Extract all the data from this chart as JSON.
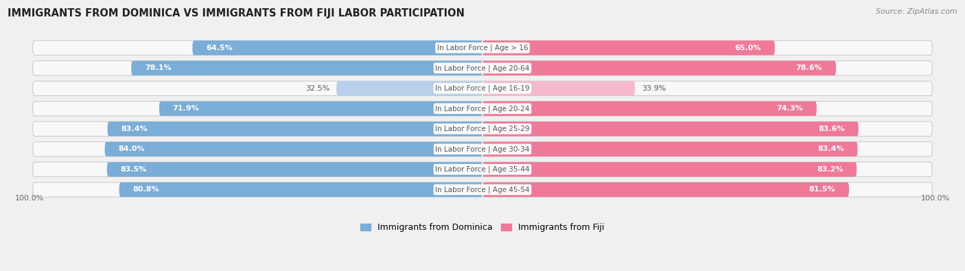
{
  "title": "IMMIGRANTS FROM DOMINICA VS IMMIGRANTS FROM FIJI LABOR PARTICIPATION",
  "source": "Source: ZipAtlas.com",
  "categories": [
    "In Labor Force | Age > 16",
    "In Labor Force | Age 20-64",
    "In Labor Force | Age 16-19",
    "In Labor Force | Age 20-24",
    "In Labor Force | Age 25-29",
    "In Labor Force | Age 30-34",
    "In Labor Force | Age 35-44",
    "In Labor Force | Age 45-54"
  ],
  "dominica_values": [
    64.5,
    78.1,
    32.5,
    71.9,
    83.4,
    84.0,
    83.5,
    80.8
  ],
  "fiji_values": [
    65.0,
    78.6,
    33.9,
    74.3,
    83.6,
    83.4,
    83.2,
    81.5
  ],
  "dominica_color": "#7aadd8",
  "dominica_color_light": "#b8d0ea",
  "fiji_color": "#f07898",
  "fiji_color_light": "#f5b8cc",
  "label_white": "#ffffff",
  "label_dark": "#555555",
  "bg_color": "#f0f0f0",
  "row_bg_color": "#e0e0e0",
  "row_bg_inner": "#f8f8f8",
  "center_label_color": "#555555",
  "max_value": 100.0,
  "legend_dominica": "Immigrants from Dominica",
  "legend_fiji": "Immigrants from Fiji",
  "light_threshold": 40
}
